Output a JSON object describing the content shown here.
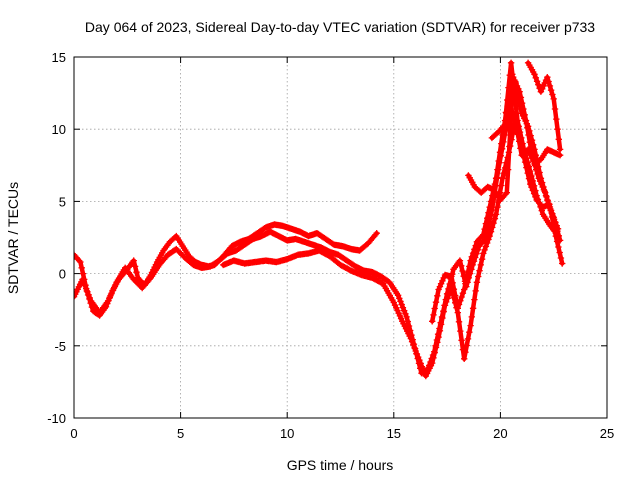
{
  "chart_data": {
    "type": "scatter",
    "title": "Day 064 of 2023, Sidereal Day-to-day VTEC variation (SDTVAR) for receiver p733",
    "xlabel": "GPS time / hours",
    "ylabel": "SDTVAR / TECUs",
    "xlim": [
      0,
      25
    ],
    "ylim": [
      -10,
      15
    ],
    "xticks": [
      0,
      5,
      10,
      15,
      20,
      25
    ],
    "yticks": [
      -10,
      -5,
      0,
      5,
      10,
      15
    ],
    "grid": true,
    "marker": "plus",
    "color": "#ff0000",
    "series": [
      {
        "values": [
          [
            0.0,
            1.3
          ],
          [
            0.3,
            0.8
          ],
          [
            0.6,
            -1.2
          ],
          [
            0.9,
            -2.6
          ],
          [
            1.2,
            -2.9
          ],
          [
            1.5,
            -2.3
          ],
          [
            1.8,
            -1.2
          ],
          [
            2.1,
            -0.4
          ],
          [
            2.5,
            0.3
          ],
          [
            2.8,
            0.9
          ],
          [
            3.0,
            -0.3
          ],
          [
            3.3,
            -0.8
          ],
          [
            3.6,
            -0.1
          ],
          [
            3.9,
            0.8
          ],
          [
            4.2,
            1.6
          ],
          [
            4.5,
            2.2
          ],
          [
            4.8,
            2.6
          ],
          [
            5.1,
            1.9
          ],
          [
            5.4,
            1.2
          ],
          [
            5.7,
            0.8
          ],
          [
            6.0,
            0.6
          ],
          [
            6.3,
            0.5
          ],
          [
            6.6,
            0.6
          ],
          [
            7.0,
            1.2
          ],
          [
            7.4,
            1.9
          ],
          [
            7.8,
            2.2
          ],
          [
            8.2,
            2.4
          ],
          [
            8.6,
            2.8
          ],
          [
            9.0,
            3.2
          ],
          [
            9.4,
            3.4
          ],
          [
            9.8,
            3.3
          ],
          [
            10.2,
            3.1
          ],
          [
            10.6,
            2.9
          ],
          [
            11.0,
            2.6
          ],
          [
            11.4,
            2.8
          ],
          [
            11.8,
            2.4
          ],
          [
            12.2,
            2.0
          ],
          [
            12.6,
            1.9
          ],
          [
            13.0,
            1.7
          ],
          [
            13.4,
            1.6
          ],
          [
            13.8,
            2.1
          ],
          [
            14.2,
            2.8
          ]
        ]
      },
      {
        "values": [
          [
            0.0,
            -1.6
          ],
          [
            0.4,
            -0.4
          ],
          [
            0.8,
            -1.9
          ],
          [
            1.2,
            -2.7
          ],
          [
            1.6,
            -1.9
          ],
          [
            2.0,
            -0.6
          ],
          [
            2.4,
            0.4
          ],
          [
            2.8,
            -0.4
          ],
          [
            3.2,
            -1.0
          ],
          [
            3.6,
            -0.3
          ],
          [
            4.0,
            0.6
          ],
          [
            4.4,
            1.3
          ],
          [
            4.8,
            1.7
          ],
          [
            5.2,
            1.1
          ],
          [
            5.6,
            0.6
          ],
          [
            6.0,
            0.4
          ],
          [
            6.4,
            0.5
          ],
          [
            6.8,
            0.9
          ],
          [
            7.2,
            1.4
          ],
          [
            7.6,
            1.6
          ],
          [
            8.0,
            2.0
          ],
          [
            8.4,
            2.4
          ],
          [
            8.8,
            2.6
          ],
          [
            9.2,
            2.9
          ],
          [
            9.6,
            2.6
          ],
          [
            10.0,
            2.3
          ],
          [
            10.4,
            2.4
          ],
          [
            10.8,
            2.2
          ],
          [
            11.2,
            2.0
          ],
          [
            11.6,
            1.8
          ],
          [
            12.0,
            1.5
          ],
          [
            12.4,
            1.3
          ],
          [
            12.8,
            0.9
          ],
          [
            13.2,
            0.5
          ],
          [
            13.6,
            0.2
          ],
          [
            14.0,
            0.1
          ],
          [
            14.4,
            -0.2
          ],
          [
            14.8,
            -0.6
          ],
          [
            15.2,
            -1.5
          ],
          [
            15.6,
            -3.0
          ],
          [
            16.0,
            -5.2
          ],
          [
            16.3,
            -6.9
          ],
          [
            16.6,
            -6.6
          ],
          [
            16.9,
            -5.4
          ],
          [
            17.2,
            -3.4
          ],
          [
            17.5,
            -1.4
          ],
          [
            17.8,
            0.3
          ],
          [
            18.1,
            0.9
          ],
          [
            18.4,
            -0.9
          ],
          [
            18.7,
            0.6
          ],
          [
            19.0,
            1.9
          ],
          [
            19.3,
            2.4
          ],
          [
            19.6,
            4.4
          ],
          [
            19.9,
            7.2
          ],
          [
            20.2,
            9.6
          ],
          [
            20.5,
            11.4
          ],
          [
            20.8,
            10.3
          ],
          [
            21.1,
            8.1
          ],
          [
            21.4,
            6.2
          ],
          [
            21.7,
            5.1
          ],
          [
            22.0,
            4.6
          ],
          [
            22.3,
            4.8
          ],
          [
            22.6,
            2.6
          ],
          [
            22.9,
            0.7
          ]
        ]
      },
      {
        "values": [
          [
            7.0,
            0.6
          ],
          [
            7.5,
            0.9
          ],
          [
            8.0,
            0.7
          ],
          [
            8.5,
            0.8
          ],
          [
            9.0,
            0.9
          ],
          [
            9.5,
            0.8
          ],
          [
            10.0,
            1.0
          ],
          [
            10.5,
            1.3
          ],
          [
            11.0,
            1.4
          ],
          [
            11.5,
            1.6
          ],
          [
            12.0,
            1.2
          ],
          [
            12.5,
            0.6
          ],
          [
            13.0,
            0.2
          ],
          [
            13.5,
            -0.1
          ],
          [
            14.0,
            -0.3
          ],
          [
            14.5,
            -0.7
          ],
          [
            15.0,
            -2.0
          ],
          [
            15.4,
            -3.3
          ],
          [
            15.8,
            -4.5
          ],
          [
            16.2,
            -6.0
          ],
          [
            16.5,
            -7.1
          ],
          [
            16.8,
            -6.2
          ],
          [
            17.1,
            -4.4
          ],
          [
            17.4,
            -2.2
          ],
          [
            17.7,
            -1.0
          ],
          [
            18.0,
            -2.7
          ],
          [
            18.3,
            -5.9
          ],
          [
            18.6,
            -3.6
          ],
          [
            18.9,
            -0.6
          ],
          [
            19.2,
            1.4
          ],
          [
            19.5,
            2.6
          ],
          [
            19.8,
            4.1
          ],
          [
            20.1,
            6.6
          ],
          [
            20.4,
            8.4
          ],
          [
            20.7,
            10.6
          ],
          [
            21.0,
            8.2
          ],
          [
            21.3,
            8.6
          ],
          [
            21.6,
            7.6
          ],
          [
            21.9,
            7.9
          ],
          [
            22.2,
            8.6
          ],
          [
            22.5,
            8.4
          ],
          [
            22.8,
            8.2
          ]
        ]
      },
      {
        "values": [
          [
            16.8,
            -3.3
          ],
          [
            17.1,
            -1.1
          ],
          [
            17.4,
            -0.1
          ],
          [
            17.7,
            -0.2
          ],
          [
            18.0,
            -2.4
          ],
          [
            18.3,
            -1.1
          ],
          [
            18.6,
            0.9
          ],
          [
            18.9,
            2.2
          ],
          [
            19.2,
            2.7
          ],
          [
            19.5,
            4.6
          ],
          [
            19.8,
            6.6
          ],
          [
            20.1,
            9.6
          ],
          [
            20.4,
            12.1
          ],
          [
            20.7,
            13.3
          ],
          [
            21.0,
            11.1
          ],
          [
            21.3,
            10.2
          ],
          [
            21.6,
            8.6
          ],
          [
            21.9,
            6.6
          ],
          [
            22.2,
            5.1
          ],
          [
            22.5,
            3.9
          ],
          [
            22.8,
            2.3
          ]
        ]
      },
      {
        "values": [
          [
            18.5,
            6.8
          ],
          [
            18.8,
            6.0
          ],
          [
            19.1,
            5.6
          ],
          [
            19.4,
            6.0
          ],
          [
            19.7,
            5.8
          ],
          [
            20.0,
            5.1
          ],
          [
            20.3,
            5.6
          ],
          [
            20.6,
            13.6
          ],
          [
            20.9,
            12.6
          ],
          [
            21.2,
            10.6
          ],
          [
            21.5,
            8.1
          ],
          [
            21.8,
            6.6
          ],
          [
            22.1,
            5.6
          ],
          [
            22.4,
            4.2
          ],
          [
            22.7,
            3.1
          ]
        ]
      },
      {
        "values": [
          [
            19.6,
            9.4
          ],
          [
            19.9,
            9.8
          ],
          [
            20.2,
            10.3
          ],
          [
            20.5,
            14.6
          ],
          [
            20.8,
            10.6
          ],
          [
            21.1,
            8.6
          ],
          [
            21.4,
            7.1
          ],
          [
            21.7,
            5.4
          ],
          [
            22.0,
            4.1
          ],
          [
            22.3,
            3.4
          ],
          [
            22.6,
            2.8
          ]
        ]
      },
      {
        "values": [
          [
            21.3,
            14.6
          ],
          [
            21.6,
            13.8
          ],
          [
            21.9,
            12.6
          ],
          [
            22.2,
            13.6
          ],
          [
            22.5,
            12.1
          ],
          [
            22.8,
            8.6
          ]
        ]
      }
    ]
  }
}
